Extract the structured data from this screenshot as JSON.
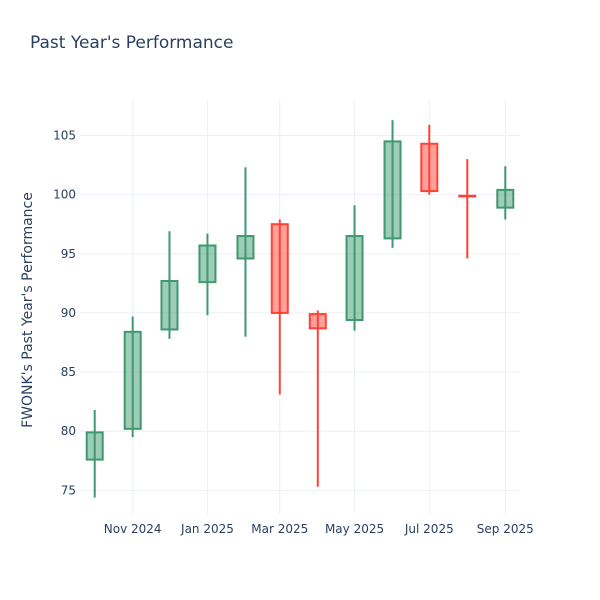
{
  "chart_data": {
    "type": "candlestick",
    "title": "Past Year's Performance",
    "xlabel": "",
    "ylabel": "FWONK's Past Year's Performance",
    "ylim": [
      73,
      108
    ],
    "xrange": [
      "2024-09-19",
      "2025-09-13"
    ],
    "yticks": [
      75,
      80,
      85,
      90,
      95,
      100,
      105
    ],
    "xticks": [
      {
        "date": "2024-11-01",
        "label": "Nov 2024"
      },
      {
        "date": "2025-01-01",
        "label": "Jan 2025"
      },
      {
        "date": "2025-03-01",
        "label": "Mar 2025"
      },
      {
        "date": "2025-05-01",
        "label": "May 2025"
      },
      {
        "date": "2025-07-01",
        "label": "Jul 2025"
      },
      {
        "date": "2025-09-01",
        "label": "Sep 2025"
      }
    ],
    "grid": true,
    "increasing_color": "#3d9970",
    "decreasing_color": "#ff4136",
    "candles": [
      {
        "date": "2024-10-01",
        "open": 77.6,
        "high": 81.8,
        "low": 74.4,
        "close": 79.9
      },
      {
        "date": "2024-11-01",
        "open": 80.2,
        "high": 89.7,
        "low": 79.5,
        "close": 88.4
      },
      {
        "date": "2024-12-01",
        "open": 88.6,
        "high": 96.9,
        "low": 87.8,
        "close": 92.7
      },
      {
        "date": "2025-01-01",
        "open": 92.6,
        "high": 96.7,
        "low": 89.8,
        "close": 95.7
      },
      {
        "date": "2025-02-01",
        "open": 94.6,
        "high": 102.3,
        "low": 88.0,
        "close": 96.5
      },
      {
        "date": "2025-03-01",
        "open": 97.5,
        "high": 97.9,
        "low": 83.1,
        "close": 90.0
      },
      {
        "date": "2025-04-01",
        "open": 89.9,
        "high": 90.2,
        "low": 75.3,
        "close": 88.7
      },
      {
        "date": "2025-05-01",
        "open": 89.4,
        "high": 99.1,
        "low": 88.5,
        "close": 96.5
      },
      {
        "date": "2025-06-01",
        "open": 96.3,
        "high": 106.3,
        "low": 95.5,
        "close": 104.5
      },
      {
        "date": "2025-07-01",
        "open": 104.3,
        "high": 105.9,
        "low": 100.0,
        "close": 100.3
      },
      {
        "date": "2025-08-01",
        "open": 99.9,
        "high": 103.0,
        "low": 94.6,
        "close": 99.85
      },
      {
        "date": "2025-09-01",
        "open": 98.9,
        "high": 102.4,
        "low": 97.9,
        "close": 100.4
      }
    ]
  }
}
